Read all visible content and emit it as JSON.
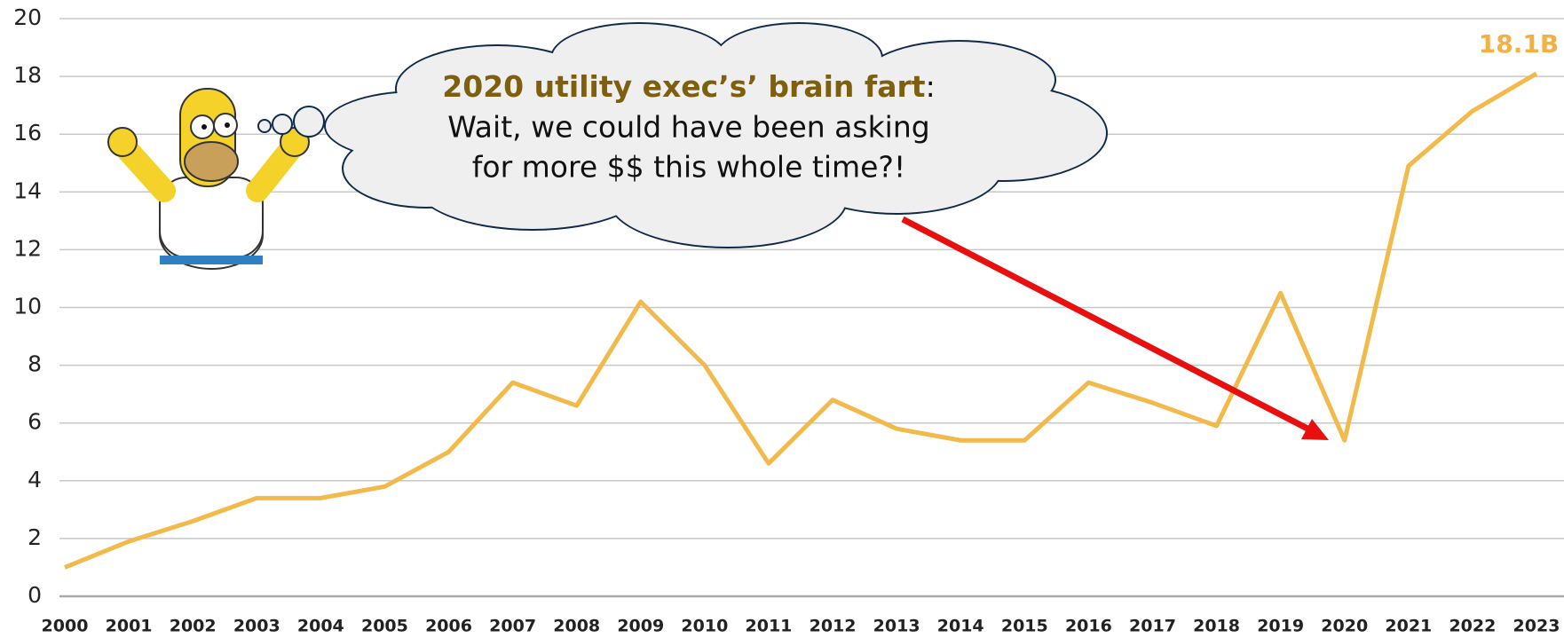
{
  "chart_data": {
    "type": "line",
    "categories": [
      "2000",
      "2001",
      "2002",
      "2003",
      "2004",
      "2005",
      "2006",
      "2007",
      "2008",
      "2009",
      "2010",
      "2011",
      "2012",
      "2013",
      "2014",
      "2015",
      "2016",
      "2017",
      "2018",
      "2019",
      "2020",
      "2021",
      "2022",
      "2023"
    ],
    "series": [
      {
        "color": "#f2b94b",
        "values": [
          1.0,
          1.9,
          2.6,
          3.4,
          3.4,
          3.8,
          5.0,
          7.4,
          6.6,
          10.2,
          8.0,
          4.6,
          6.8,
          5.8,
          5.4,
          5.4,
          7.4,
          6.7,
          5.9,
          10.5,
          5.4,
          14.9,
          16.8,
          18.1
        ],
        "value_labels": [
          null,
          null,
          null,
          null,
          null,
          null,
          null,
          null,
          null,
          null,
          null,
          null,
          null,
          null,
          null,
          null,
          null,
          null,
          null,
          null,
          null,
          null,
          null,
          "18.1B"
        ]
      }
    ],
    "ylim": [
      0,
      20
    ],
    "yticks": [
      0,
      2,
      4,
      6,
      8,
      10,
      12,
      14,
      16,
      18,
      20
    ],
    "grid": true,
    "annotation": [
      "2020 utility exec’s’ brain fart",
      ":",
      "Wait, we could have been asking",
      "for more $$ this whole time?!"
    ]
  }
}
